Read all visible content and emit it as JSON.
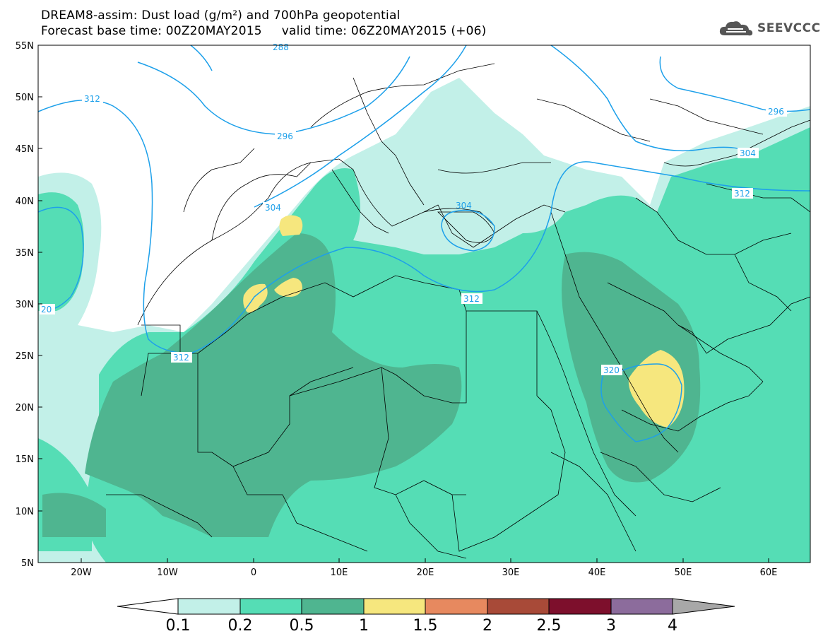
{
  "header": {
    "line1": "DREAM8-assim: Dust load (g/m²) and 700hPa geopotential",
    "line2": "Forecast base time: 00Z20MAY2015     valid time: 06Z20MAY2015 (+06)",
    "logo_text": "SEEVCCC",
    "logo_icon": "cloud-logo-icon"
  },
  "map": {
    "lon_labels": [
      "20W",
      "10W",
      "0",
      "10E",
      "20E",
      "30E",
      "40E",
      "50E",
      "60E"
    ],
    "lat_labels": [
      "55N",
      "50N",
      "45N",
      "40N",
      "35N",
      "30N",
      "25N",
      "20N",
      "15N",
      "10N",
      "5N"
    ],
    "lon_range": [
      -25,
      65
    ],
    "lat_range": [
      5,
      55
    ],
    "contour_labels": [
      "312",
      "296",
      "288",
      "304",
      "304",
      "312",
      "320",
      "312",
      "20",
      "304",
      "296",
      "312"
    ]
  },
  "legend": {
    "labels": [
      "0.1",
      "0.2",
      "0.5",
      "1",
      "1.5",
      "2",
      "2.5",
      "3",
      "4"
    ],
    "colors": [
      "#c2f0e8",
      "#55ddb5",
      "#4fb590",
      "#f6e77e",
      "#e7895f",
      "#a84a38",
      "#7d0f2c",
      "#8c6c9c",
      "#a8a8a8"
    ]
  },
  "colors": {
    "contour": "#1da0ea",
    "borders": "#000000"
  }
}
